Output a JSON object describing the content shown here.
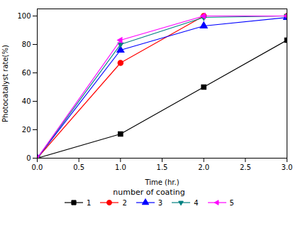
{
  "chart_data": {
    "type": "line",
    "xlabel": "Time (hr.)",
    "ylabel": "Photocatalyst rate(%)",
    "x": [
      0,
      1,
      2,
      3
    ],
    "series": [
      {
        "name": "1",
        "color": "#000000",
        "marker": "square",
        "line_style": "solid",
        "values": [
          0,
          17,
          50,
          83
        ]
      },
      {
        "name": "2",
        "color": "#ff0000",
        "marker": "circle",
        "line_style": "solid",
        "values": [
          0,
          67,
          100,
          100
        ]
      },
      {
        "name": "3",
        "color": "#0000ff",
        "marker": "triangle-up",
        "line_style": "solid",
        "values": [
          0,
          76,
          93,
          99
        ]
      },
      {
        "name": "4",
        "color": "#008080",
        "marker": "triangle-down",
        "line_style": "solid",
        "values": [
          0,
          80,
          99,
          100
        ]
      },
      {
        "name": "5",
        "color": "#ff00ff",
        "marker": "triangle-left",
        "line_style": "solid",
        "values": [
          0,
          83,
          100,
          100
        ]
      }
    ],
    "legend_title": "number of coating",
    "legend": "bottom",
    "xlim": [
      0,
      3.0
    ],
    "ylim": [
      0,
      105
    ],
    "xticks": [
      {
        "value": 0,
        "label": "0.0"
      },
      0.5,
      {
        "value": 1,
        "label": "1.0"
      },
      1.5,
      {
        "value": 2,
        "label": "2.0"
      },
      2.5,
      {
        "value": 3,
        "label": "3.0"
      }
    ],
    "yticks": [
      0,
      20,
      40,
      60,
      80,
      100
    ],
    "grid": false
  }
}
